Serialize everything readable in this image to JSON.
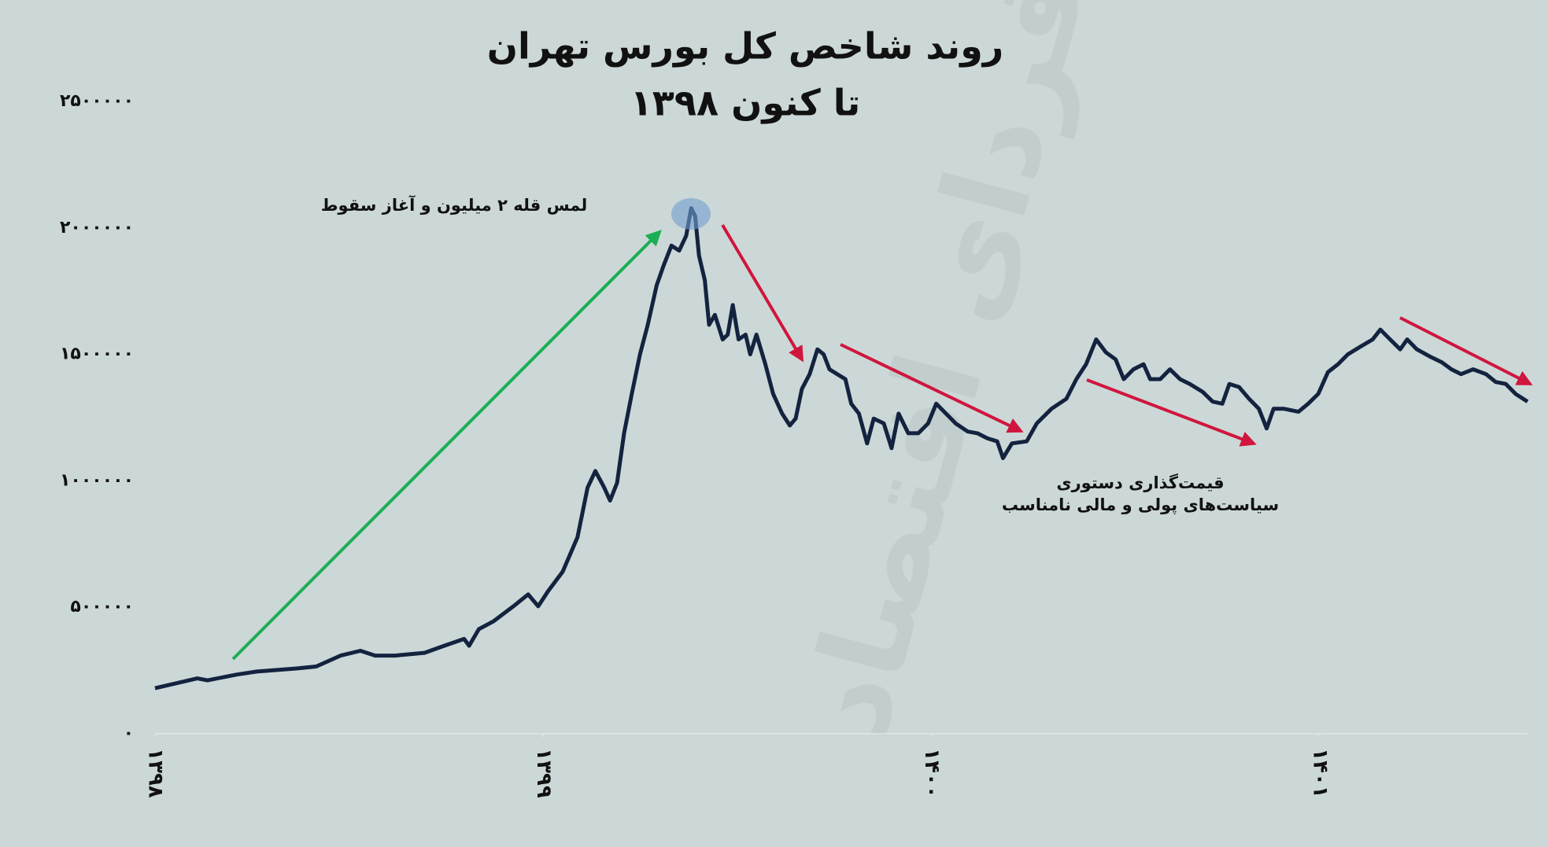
{
  "chart_data": {
    "type": "line",
    "title": "روند شاخص کل بورس تهران",
    "subtitle": "۱۳۹۸ تا کنون",
    "annotations": [
      "لمس قله ۲ میلیون و آغاز سقوط",
      "قیمت‌گذاری دستوری",
      "سیاست‌های پولی و مالی نامناسب"
    ],
    "watermark": "فردای اقتصاد",
    "color": "#13233f",
    "xlim": [
      1398,
      1401.535
    ],
    "xticks": [
      {
        "value": 1398,
        "label": "۱۳۹۸"
      },
      {
        "value": 1399,
        "label": "۱۳۹۹"
      },
      {
        "value": 1400,
        "label": "۱۴۰۰"
      },
      {
        "value": 1401,
        "label": "۱۴۰۱"
      }
    ],
    "ylim": [
      0,
      2500000
    ],
    "yticks": [
      {
        "value": 0,
        "label": "۰"
      },
      {
        "value": 500000,
        "label": "۵۰۰۰۰۰"
      },
      {
        "value": 1000000,
        "label": "۱۰۰۰۰۰۰"
      },
      {
        "value": 1500000,
        "label": "۱۵۰۰۰۰۰"
      },
      {
        "value": 2000000,
        "label": "۲۰۰۰۰۰۰"
      },
      {
        "value": 2500000,
        "label": "۲۵۰۰۰۰۰"
      }
    ],
    "x": [
      1398.0,
      1398.109,
      1398.135,
      1398.211,
      1398.262,
      1398.364,
      1398.415,
      1398.478,
      1398.529,
      1398.567,
      1398.618,
      1398.694,
      1398.745,
      1398.796,
      1398.809,
      1398.834,
      1398.872,
      1398.923,
      1398.961,
      1398.987,
      1399.012,
      1399.05,
      1399.088,
      1399.114,
      1399.134,
      1399.157,
      1399.172,
      1399.19,
      1399.208,
      1399.228,
      1399.249,
      1399.269,
      1399.292,
      1399.31,
      1399.33,
      1399.35,
      1399.368,
      1399.381,
      1399.391,
      1399.401,
      1399.416,
      1399.427,
      1399.442,
      1399.462,
      1399.475,
      1399.488,
      1399.503,
      1399.521,
      1399.533,
      1399.549,
      1399.572,
      1399.592,
      1399.615,
      1399.635,
      1399.65,
      1399.666,
      1399.686,
      1399.706,
      1399.722,
      1399.737,
      1399.757,
      1399.778,
      1399.793,
      1399.813,
      1399.834,
      1399.851,
      1399.877,
      1399.897,
      1399.915,
      1399.94,
      1399.966,
      1399.991,
      1400.012,
      1400.037,
      1400.062,
      1400.093,
      1400.118,
      1400.144,
      1400.169,
      1400.184,
      1400.207,
      1400.245,
      1400.271,
      1400.309,
      1400.347,
      1400.373,
      1400.398,
      1400.424,
      1400.449,
      1400.474,
      1400.495,
      1400.52,
      1400.546,
      1400.563,
      1400.589,
      1400.614,
      1400.64,
      1400.665,
      1400.698,
      1400.724,
      1400.749,
      1400.767,
      1400.792,
      1400.818,
      1400.843,
      1400.863,
      1400.881,
      1400.907,
      1400.945,
      1400.97,
      1400.996,
      1401.021,
      1401.047,
      1401.072,
      1401.105,
      1401.136,
      1401.156,
      1401.181,
      1401.207,
      1401.225,
      1401.25,
      1401.283,
      1401.314,
      1401.339,
      1401.364,
      1401.395,
      1401.428,
      1401.453,
      1401.479,
      1401.504,
      1401.535
    ],
    "values": [
      180000,
      219000,
      211000,
      234000,
      246000,
      258000,
      266000,
      309000,
      328000,
      309000,
      309000,
      320000,
      348000,
      375000,
      348000,
      414000,
      445000,
      504000,
      551000,
      504000,
      563000,
      641000,
      777000,
      973000,
      1039000,
      973000,
      922000,
      992000,
      1188000,
      1344000,
      1500000,
      1617000,
      1773000,
      1852000,
      1930000,
      1910000,
      1969000,
      2078000,
      2047000,
      1891000,
      1793000,
      1617000,
      1656000,
      1559000,
      1578000,
      1695000,
      1559000,
      1578000,
      1500000,
      1578000,
      1461000,
      1344000,
      1266000,
      1219000,
      1246000,
      1363000,
      1422000,
      1520000,
      1500000,
      1441000,
      1422000,
      1402000,
      1305000,
      1266000,
      1148000,
      1246000,
      1227000,
      1129000,
      1266000,
      1188000,
      1188000,
      1227000,
      1305000,
      1266000,
      1227000,
      1195000,
      1188000,
      1168000,
      1156000,
      1090000,
      1148000,
      1156000,
      1227000,
      1285000,
      1324000,
      1402000,
      1461000,
      1559000,
      1508000,
      1480000,
      1402000,
      1441000,
      1461000,
      1402000,
      1402000,
      1441000,
      1402000,
      1383000,
      1352000,
      1313000,
      1305000,
      1383000,
      1371000,
      1324000,
      1285000,
      1207000,
      1285000,
      1285000,
      1273000,
      1305000,
      1344000,
      1430000,
      1461000,
      1500000,
      1531000,
      1559000,
      1598000,
      1559000,
      1520000,
      1559000,
      1520000,
      1492000,
      1469000,
      1441000,
      1422000,
      1441000,
      1422000,
      1391000,
      1383000,
      1344000,
      1313000
    ]
  }
}
